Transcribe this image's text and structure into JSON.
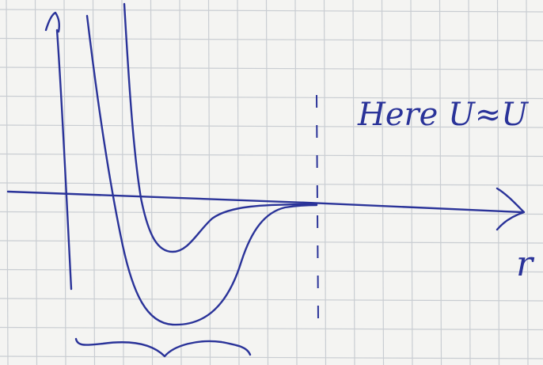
{
  "annotation": "Here U≈U",
  "x_axis_label": "r"
}
